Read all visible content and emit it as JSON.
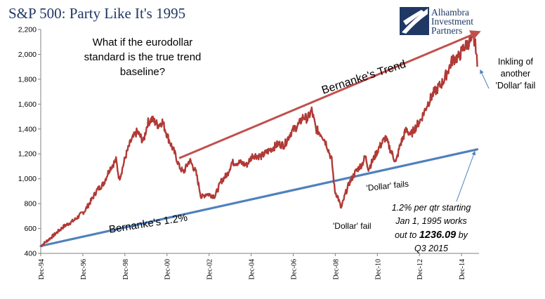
{
  "chart_data": {
    "type": "line",
    "title": "S&P 500: Party Like It's 1995",
    "logo_text": [
      "Alhambra",
      "Investment",
      "Partners"
    ],
    "xlabel": "",
    "ylabel": "",
    "x_tick_labels": [
      "Dec-94",
      "Dec-96",
      "Dec-98",
      "Dec-00",
      "Dec-02",
      "Dec-04",
      "Dec-06",
      "Dec-08",
      "Dec-10",
      "Dec-12",
      "Dec-14"
    ],
    "x_range": [
      1994.92,
      2015.75
    ],
    "ylim": [
      400,
      2200
    ],
    "y_ticks": [
      400,
      600,
      800,
      1000,
      1200,
      1400,
      1600,
      1800,
      2000,
      2200
    ],
    "y_tick_labels": [
      "400",
      "600",
      "800",
      "1,000",
      "1,200",
      "1,400",
      "1,600",
      "1,800",
      "2,000",
      "2,200"
    ],
    "grid": false,
    "colors": {
      "sp500": "#b03a36",
      "trend": "#c0504d",
      "baseline": "#4f81bd",
      "annotation": "#4f81bd"
    },
    "series": [
      {
        "name": "",
        "style": "line",
        "x": [
          1994.92,
          1995.5,
          1996.0,
          1996.5,
          1997.0,
          1997.3,
          1997.6,
          1997.9,
          1998.2,
          1998.5,
          1998.65,
          1998.75,
          1998.95,
          1999.2,
          1999.5,
          1999.8,
          2000.0,
          2000.2,
          2000.5,
          2000.7,
          2001.0,
          2001.3,
          2001.5,
          2001.7,
          2002.0,
          2002.3,
          2002.55,
          2002.8,
          2003.2,
          2003.5,
          2003.8,
          2004.0,
          2004.4,
          2004.7,
          2005.0,
          2005.4,
          2005.8,
          2006.2,
          2006.5,
          2006.8,
          2007.2,
          2007.4,
          2007.6,
          2007.8,
          2008.0,
          2008.3,
          2008.5,
          2008.75,
          2008.9,
          2009.05,
          2009.2,
          2009.4,
          2009.6,
          2009.9,
          2010.2,
          2010.35,
          2010.5,
          2010.8,
          2011.0,
          2011.3,
          2011.6,
          2011.8,
          2012.0,
          2012.3,
          2012.5,
          2012.8,
          2013.0,
          2013.3,
          2013.6,
          2014.0,
          2014.1,
          2014.5,
          2014.8,
          2015.0,
          2015.3,
          2015.5,
          2015.6,
          2015.67
        ],
        "y": [
          459,
          540,
          615,
          665,
          740,
          820,
          910,
          960,
          1080,
          1150,
          1000,
          1050,
          1180,
          1300,
          1380,
          1300,
          1450,
          1480,
          1430,
          1460,
          1320,
          1200,
          1100,
          1050,
          1150,
          1050,
          850,
          880,
          860,
          980,
          1040,
          1130,
          1130,
          1110,
          1190,
          1180,
          1230,
          1280,
          1270,
          1370,
          1440,
          1500,
          1480,
          1550,
          1400,
          1350,
          1280,
          1150,
          900,
          850,
          760,
          880,
          970,
          1060,
          1120,
          1180,
          1080,
          1180,
          1250,
          1330,
          1210,
          1130,
          1270,
          1400,
          1350,
          1430,
          1480,
          1600,
          1690,
          1770,
          1800,
          1960,
          1980,
          2050,
          2100,
          2110,
          2060,
          1900
        ]
      },
      {
        "name": "",
        "style": "line",
        "x": [
          1994.92,
          2015.67
        ],
        "y": [
          459,
          1236.09
        ]
      }
    ],
    "trend_line": {
      "x": [
        2001.5,
        2015.75
      ],
      "y": [
        1165,
        2180
      ]
    },
    "annotations": [
      {
        "text": "What if the eurodollar standard is the true trend baseline?",
        "lines": [
          "What if the eurodollar",
          "standard is the true trend",
          "baseline?"
        ]
      },
      {
        "text": "Bernanke's Trend"
      },
      {
        "text": "Bernanke's 1.2%"
      },
      {
        "text": "'Dollar' fail"
      },
      {
        "text": "'Dollar' fails"
      },
      {
        "text": "Inkling of another 'Dollar' fail",
        "lines": [
          "Inkling of",
          "another",
          "'Dollar' fail"
        ]
      },
      {
        "text": "1.2% per qtr starting Jan 1, 1995 works out to 1236.09 by Q3 2015",
        "lines": [
          "1.2% per qtr starting",
          "Jan 1, 1995  works",
          "out to",
          "1236.09",
          " by",
          "Q3 2015"
        ]
      }
    ]
  }
}
